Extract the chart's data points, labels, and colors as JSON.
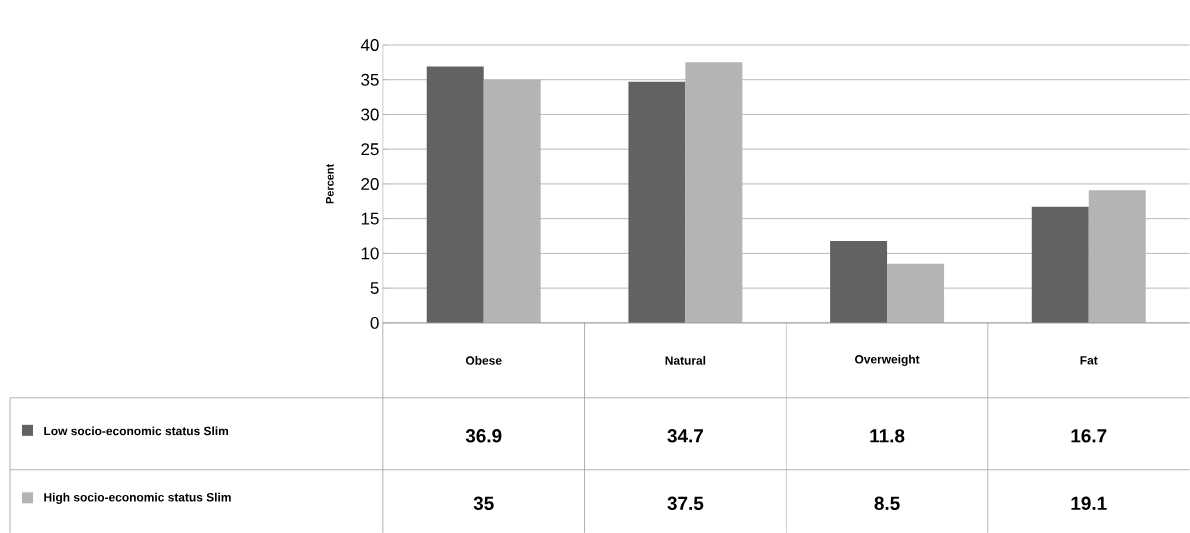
{
  "chart_data": {
    "type": "bar",
    "ylabel": "Percent",
    "categories": [
      "Obese",
      "Natural",
      "Overweight",
      "Fat"
    ],
    "series": [
      {
        "name": "Low socio-economic status Slim",
        "color": "#626262",
        "values": [
          36.9,
          34.7,
          11.8,
          16.7
        ]
      },
      {
        "name": "High socio-economic status Slim",
        "color": "#b4b4b4",
        "values": [
          35,
          37.5,
          8.5,
          19.1
        ]
      }
    ],
    "ylim": [
      0,
      40
    ],
    "yticks": [
      0,
      5,
      10,
      15,
      20,
      25,
      30,
      35,
      40
    ],
    "grid": "y",
    "legend": "bottom",
    "data_labels": true
  }
}
